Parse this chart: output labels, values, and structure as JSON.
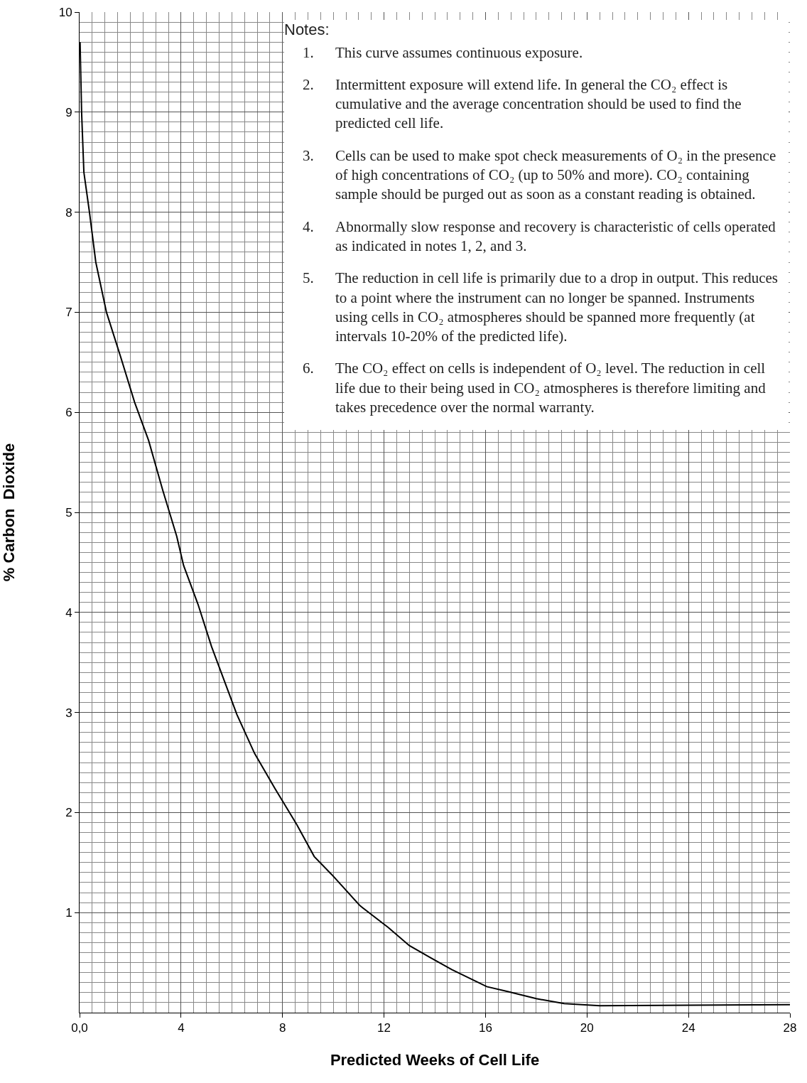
{
  "chart_data": {
    "type": "line",
    "xlabel": "Predicted Weeks of Cell Life",
    "ylabel": "% Carbon  Dioxide",
    "x": [
      0.02,
      0.08,
      0.17,
      0.39,
      0.64,
      1.06,
      1.6,
      2.17,
      2.72,
      3.28,
      3.83,
      4.1,
      4.67,
      5.2,
      6.2,
      6.9,
      7.7,
      8.56,
      9.25,
      9.94,
      11.05,
      12.17,
      13.0,
      13.83,
      14.67,
      16.05,
      16.9,
      18.0,
      19.1,
      20.5,
      28
    ],
    "values": [
      9.7,
      9.0,
      8.4,
      8.0,
      7.5,
      7.0,
      6.57,
      6.1,
      5.72,
      5.22,
      4.76,
      4.47,
      4.08,
      3.66,
      2.98,
      2.59,
      2.24,
      1.88,
      1.56,
      1.38,
      1.07,
      0.85,
      0.67,
      0.55,
      0.43,
      0.26,
      0.21,
      0.14,
      0.09,
      0.07,
      0.08
    ],
    "color": "#000000",
    "xlim": [
      0,
      28
    ],
    "ylim": [
      0,
      10
    ],
    "xticks": [
      {
        "value": 0,
        "label": "0,0"
      },
      4,
      8,
      12,
      16,
      20,
      24,
      28
    ],
    "yticks": [
      1,
      2,
      3,
      4,
      5,
      6,
      7,
      8,
      9,
      10
    ],
    "grid": true,
    "marker": "none",
    "line_style": "solid",
    "annotations": [
      "Notes:",
      "1.\tThis curve assumes continuous exposure.",
      "2.\tIntermittent exposure will extend life. In general the CO₂ effect is cumulative and the average concentration should be used to find the predicted cell life.",
      "3.\tCells can be used to make spot check measurements of O₂ in the presence of high concentrations of CO₂ (up to 50% and more). CO₂ containing sample should be purged out as soon as a constant reading is obtained.",
      "4.\tAbnormally slow response and recovery is characteristic of cells operated as indicated in notes 1, 2, and 3.",
      "5.\tThe reduction in cell life is primarily due to a drop in output. This reduces to a point where the instrument can no longer be spanned. Instruments using cells in CO₂ atmospheres should be spanned more frequently (at intervals 10-20% of the predicted life).",
      "6.\tThe CO₂ effect on cells is independent of O₂ level. The reduction in cell life due to their being used in CO₂ atmospheres is therefore limiting and takes precedence over the normal warranty."
    ]
  }
}
